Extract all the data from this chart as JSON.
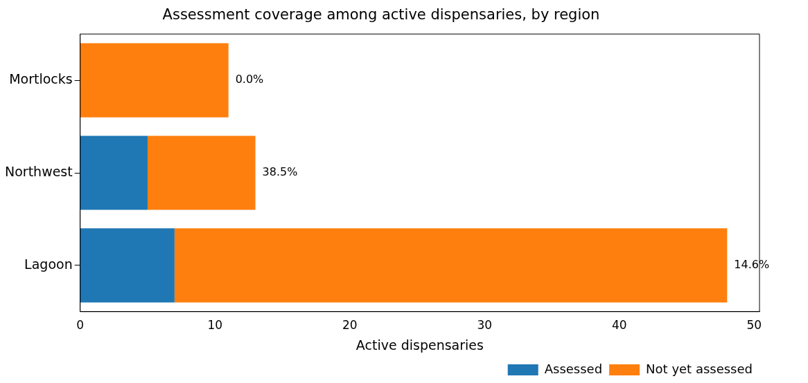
{
  "chart_data": {
    "type": "bar",
    "title": "Assessment coverage among active dispensaries, by region",
    "xlabel": "Active dispensaries",
    "orientation": "horizontal",
    "stacked": true,
    "categories": [
      "Mortlocks",
      "Northwest",
      "Lagoon"
    ],
    "series": [
      {
        "name": "Assessed",
        "color": "#1f77b4",
        "values": [
          0,
          5,
          7
        ]
      },
      {
        "name": "Not yet assessed",
        "color": "#ff7f0e",
        "values": [
          11,
          8,
          41
        ]
      }
    ],
    "annotations": [
      "0.0%",
      "38.5%",
      "14.6%"
    ],
    "xlim": [
      0,
      50.4
    ],
    "xticks": [
      0,
      10,
      20,
      30,
      40,
      50
    ],
    "grid": false,
    "legend": "bottom right"
  }
}
